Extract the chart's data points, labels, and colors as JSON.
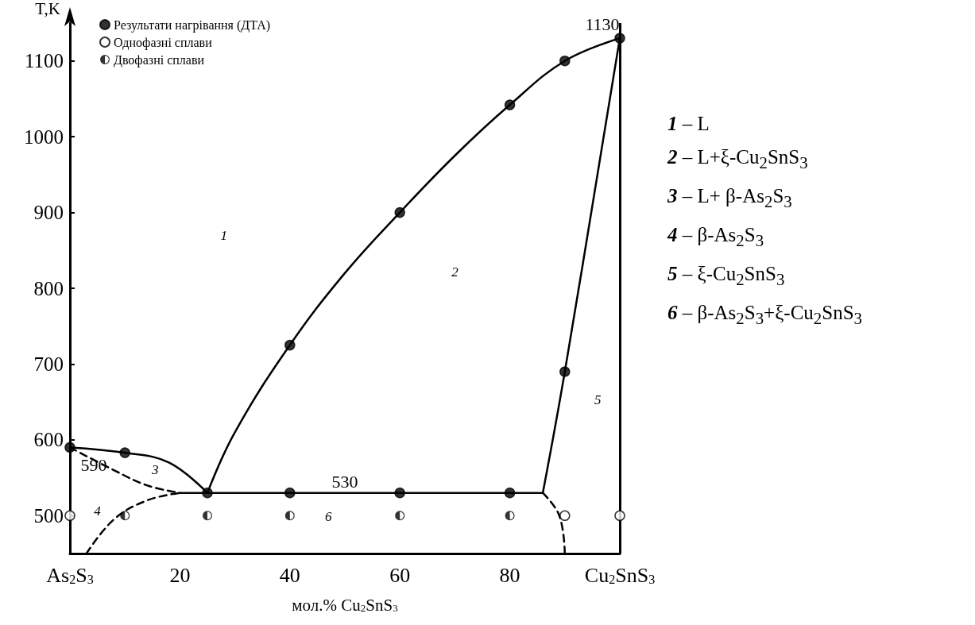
{
  "chart_data": {
    "type": "scatter",
    "xlabel": "мол.% Cu$_{2}$SnS$_{3}$",
    "ylabel": "T,K",
    "xlim": [
      0,
      100
    ],
    "xticks": [
      {
        "value": 0,
        "label": "As$_{2}$S$_{3}$"
      },
      20,
      40,
      60,
      80,
      {
        "value": 100,
        "label": "Cu$_{2}$SnS$_{3}$"
      }
    ],
    "ylim": [
      450,
      1150
    ],
    "yticks": [
      500,
      600,
      700,
      800,
      900,
      1000,
      1100
    ],
    "grid": false,
    "legend": "top left",
    "ref_lines": [
      {
        "axis": "x",
        "value": 100,
        "color": "#000000",
        "line_style": "solid"
      }
    ],
    "series": [
      {
        "name": "Результати нагрівання (ДТА)",
        "marker": "circle",
        "color": "#000000",
        "x": [
          0,
          10,
          25,
          40,
          60,
          80,
          40,
          60,
          80,
          90,
          100,
          90
        ],
        "values": [
          590,
          583,
          530,
          530,
          530,
          530,
          725,
          900,
          1042,
          1100,
          1130,
          690
        ]
      },
      {
        "name": "Однофазні сплави",
        "marker": "circle",
        "color": "#ffffff",
        "x": [
          0,
          90,
          100
        ],
        "values": [
          500,
          500,
          500
        ]
      },
      {
        "name": "Двофазні сплави",
        "marker": "half-circle",
        "color": "#000000",
        "x": [
          10,
          25,
          40,
          60,
          80
        ],
        "values": [
          500,
          500,
          500,
          500,
          500
        ]
      },
      {
        "type": "line",
        "line_style": "solid",
        "color": "#000000",
        "x": [
          0,
          10,
          18,
          25
        ],
        "values": [
          590,
          583,
          570,
          530
        ]
      },
      {
        "type": "line",
        "line_style": "solid",
        "color": "#000000",
        "x": [
          25,
          30,
          40,
          50,
          60,
          70,
          80,
          90,
          100
        ],
        "values": [
          530,
          610,
          725,
          820,
          900,
          975,
          1042,
          1100,
          1130
        ]
      },
      {
        "type": "line",
        "line_style": "solid",
        "color": "#000000",
        "x": [
          100,
          90,
          86
        ],
        "values": [
          1130,
          690,
          530
        ]
      },
      {
        "type": "line",
        "line_style": "solid",
        "color": "#000000",
        "x": [
          20,
          86
        ],
        "values": [
          530,
          530
        ]
      },
      {
        "type": "line",
        "line_style": "dashed",
        "color": "#000000",
        "x": [
          0,
          8,
          14,
          20
        ],
        "values": [
          590,
          560,
          540,
          530
        ]
      },
      {
        "type": "line",
        "line_style": "dashed",
        "color": "#000000",
        "x": [
          3,
          8,
          14,
          20
        ],
        "values": [
          450,
          495,
          520,
          530
        ]
      },
      {
        "type": "line",
        "line_style": "dashed",
        "color": "#000000",
        "x": [
          86,
          89,
          90
        ],
        "values": [
          530,
          500,
          450
        ]
      }
    ],
    "annotations": [
      {
        "text": "1130",
        "x": 100,
        "y": 1130
      },
      {
        "text": "590",
        "x": 0,
        "y": 590
      },
      {
        "text": "530",
        "x": 50,
        "y": 530
      },
      "1",
      "2",
      "3",
      "4",
      "5",
      "6",
      "1 – L",
      "2 – L+ξ-Cu$_{2}$SnS$_{3}$",
      "3 – L+ β-As$_{2}$S$_{3}$",
      "4 – β-As$_{2}$S$_{3}$",
      "5 – ξ-Cu$_{2}$SnS$_{3}$",
      "6 – β-As$_{2}$S$_{3}$+ξ-Cu$_{2}$SnS$_{3}$"
    ]
  }
}
